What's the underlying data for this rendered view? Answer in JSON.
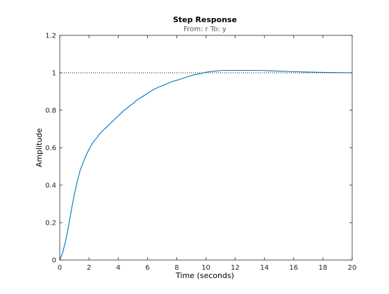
{
  "chart_data": {
    "type": "line",
    "title": "Step Response",
    "subtitle": "From: r  To: y",
    "xlabel": "Time (seconds)",
    "ylabel": "Amplitude",
    "xlim": [
      0,
      20
    ],
    "ylim": [
      0,
      1.2
    ],
    "xticks": [
      0,
      2,
      4,
      6,
      8,
      10,
      12,
      14,
      16,
      18,
      20
    ],
    "yticks": [
      0,
      0.2,
      0.4,
      0.6,
      0.8,
      1,
      1.2
    ],
    "x_tick_labels": [
      "0",
      "2",
      "4",
      "6",
      "8",
      "10",
      "12",
      "14",
      "16",
      "18",
      "20"
    ],
    "y_tick_labels": [
      "0",
      "0.2",
      "0.4",
      "0.6",
      "0.8",
      "1",
      "1.2"
    ],
    "grid": false,
    "reference_line": {
      "y": 1,
      "style": "dotted",
      "color": "#000000"
    },
    "series": [
      {
        "color": "#0072bd",
        "x": [
          0,
          0.2,
          0.4,
          0.6,
          0.8,
          1.0,
          1.2,
          1.4,
          1.6,
          1.8,
          2.0,
          2.2,
          2.4,
          2.6,
          2.8,
          3.0,
          3.2,
          3.4,
          3.6,
          3.8,
          4.0,
          4.2,
          4.4,
          4.6,
          4.8,
          5.0,
          5.2,
          5.4,
          5.6,
          5.8,
          6.0,
          6.2,
          6.4,
          6.6,
          6.8,
          7.0,
          7.2,
          7.4,
          7.6,
          7.8,
          8.0,
          8.4,
          8.8,
          9.2,
          9.6,
          10.0,
          10.5,
          11.0,
          11.5,
          12.0,
          13.0,
          14.0,
          15.0,
          16.0,
          17.0,
          18.0,
          19.0,
          20.0
        ],
        "y": [
          0,
          0.04,
          0.1,
          0.18,
          0.27,
          0.35,
          0.42,
          0.48,
          0.52,
          0.56,
          0.59,
          0.62,
          0.64,
          0.66,
          0.68,
          0.695,
          0.71,
          0.725,
          0.74,
          0.755,
          0.77,
          0.785,
          0.8,
          0.81,
          0.825,
          0.835,
          0.85,
          0.86,
          0.87,
          0.88,
          0.89,
          0.9,
          0.91,
          0.917,
          0.925,
          0.93,
          0.937,
          0.944,
          0.95,
          0.956,
          0.96,
          0.97,
          0.98,
          0.99,
          0.995,
          1.003,
          1.008,
          1.012,
          1.013,
          1.013,
          1.013,
          1.012,
          1.009,
          1.006,
          1.004,
          1.002,
          1.001,
          1.0
        ]
      }
    ]
  }
}
